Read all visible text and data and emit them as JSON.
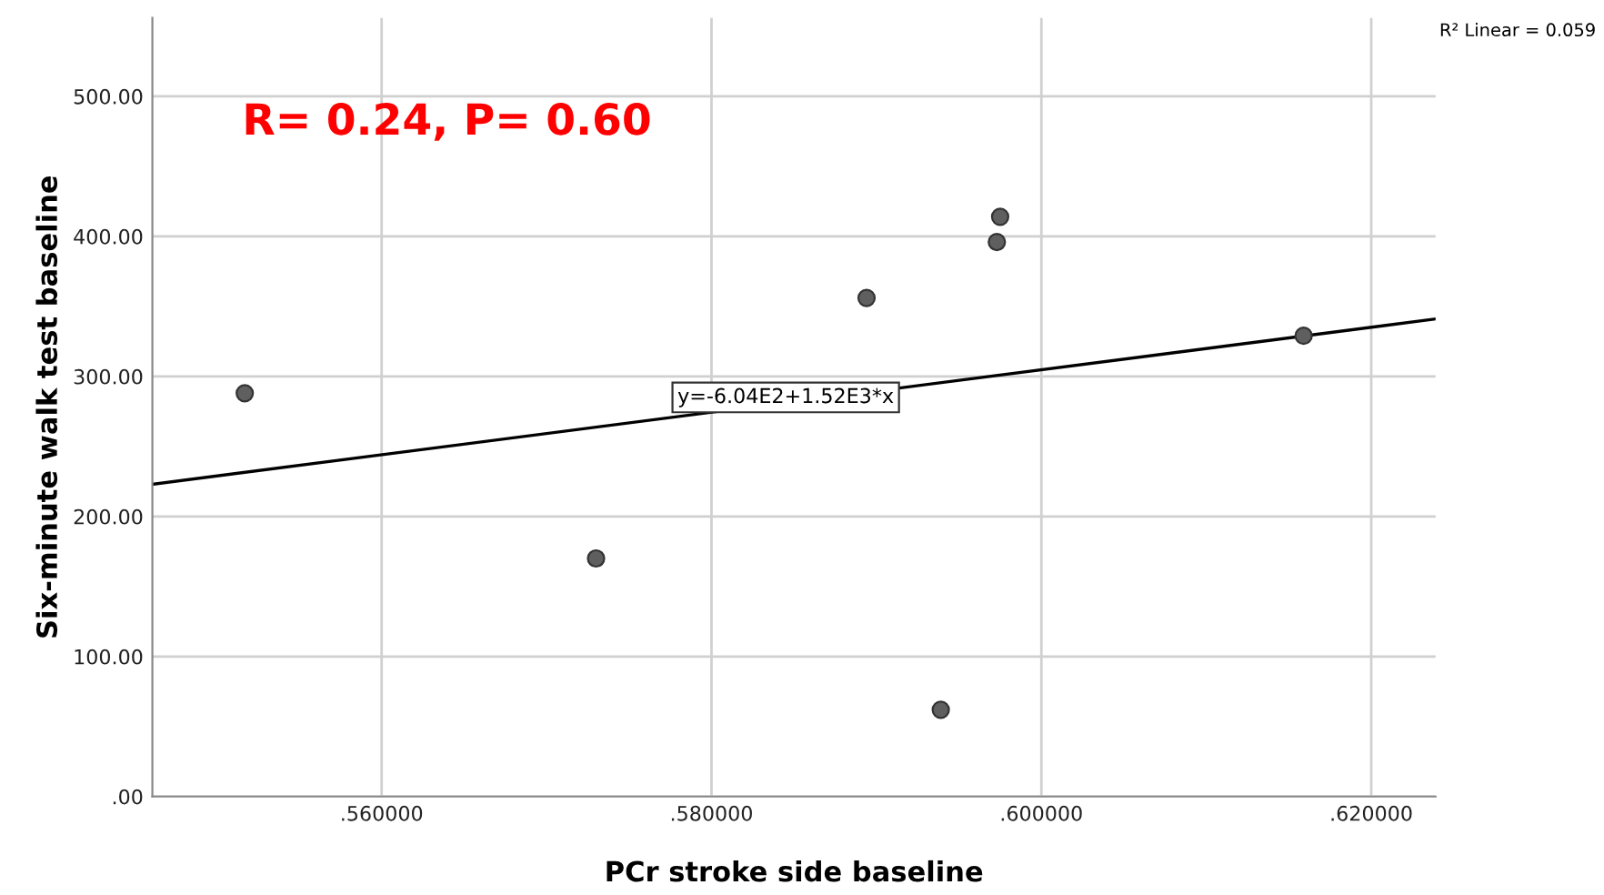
{
  "chart_data": {
    "type": "scatter",
    "xlabel": "PCr stroke side baseline",
    "ylabel": "Six-minute walk test baseline",
    "series": [
      {
        "color": "#5f5f5f",
        "marker": "circle",
        "x": [
          0.5517,
          0.573,
          0.5894,
          0.5939,
          0.5973,
          0.5975,
          0.6159
        ],
        "values": [
          288,
          170,
          356,
          62,
          396,
          414,
          329
        ]
      },
      {
        "type": "line",
        "color": "#000000",
        "marker": "none",
        "line_style": "solid",
        "x": [
          0.5461,
          0.6239
        ],
        "values": [
          223,
          341
        ]
      }
    ],
    "xlim": [
      0.5461,
      0.6239
    ],
    "ylim": [
      0,
      556
    ],
    "xticks": [
      {
        "value": 0.56,
        "label": ".560000"
      },
      {
        "value": 0.58,
        "label": ".580000"
      },
      {
        "value": 0.6,
        "label": ".600000"
      },
      {
        "value": 0.62,
        "label": ".620000"
      }
    ],
    "yticks": [
      {
        "value": 0,
        "label": ".00"
      },
      {
        "value": 100,
        "label": "100.00"
      },
      {
        "value": 200,
        "label": "200.00"
      },
      {
        "value": 300,
        "label": "300.00"
      },
      {
        "value": 400,
        "label": "400.00"
      },
      {
        "value": 500,
        "label": "500.00"
      }
    ],
    "grid": true,
    "legend": false,
    "annotations": [
      "R= 0.24, P= 0.60",
      {
        "text": "y=-6.04E2+1.52E3*x",
        "x": 0.5845,
        "y": 285
      },
      "R² Linear = 0.059"
    ]
  }
}
